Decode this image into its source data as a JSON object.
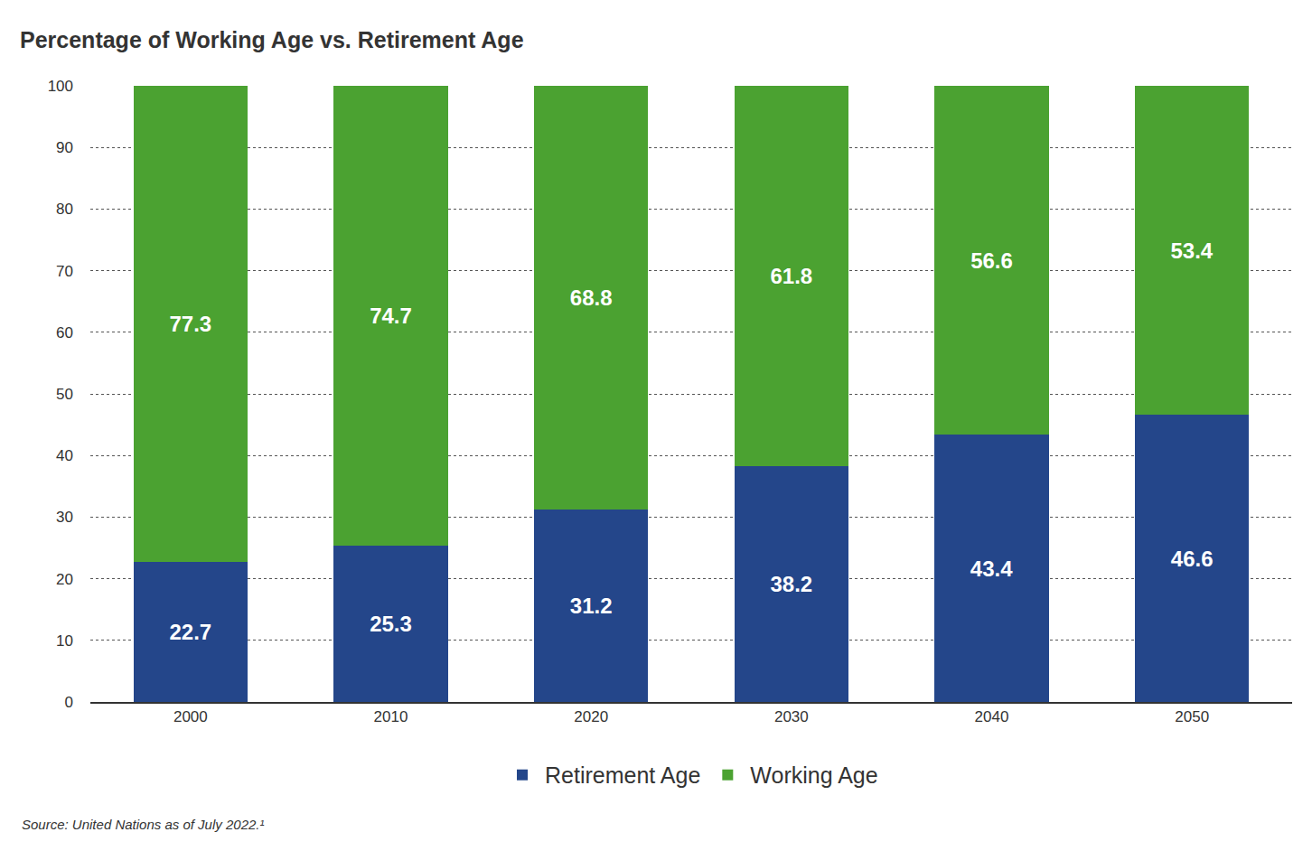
{
  "chart_data": {
    "type": "bar",
    "title": "Percentage of Working Age vs. Retirement Age",
    "categories": [
      "2000",
      "2010",
      "2020",
      "2030",
      "2040",
      "2050"
    ],
    "series": [
      {
        "name": "Retirement Age",
        "color": "#24468a",
        "values": [
          22.7,
          25.3,
          31.2,
          38.2,
          43.4,
          46.6
        ]
      },
      {
        "name": "Working Age",
        "color": "#4ba231",
        "values": [
          77.3,
          74.7,
          68.8,
          61.8,
          56.6,
          53.4
        ]
      }
    ],
    "stacked": true,
    "data_labels": true,
    "ylim": [
      0,
      100
    ],
    "yticks": [
      0,
      10,
      20,
      30,
      40,
      50,
      60,
      70,
      80,
      90,
      100
    ],
    "grid": true,
    "legend": "bottom",
    "annotations": [
      "Source: United Nations as of July 2022.¹"
    ]
  }
}
